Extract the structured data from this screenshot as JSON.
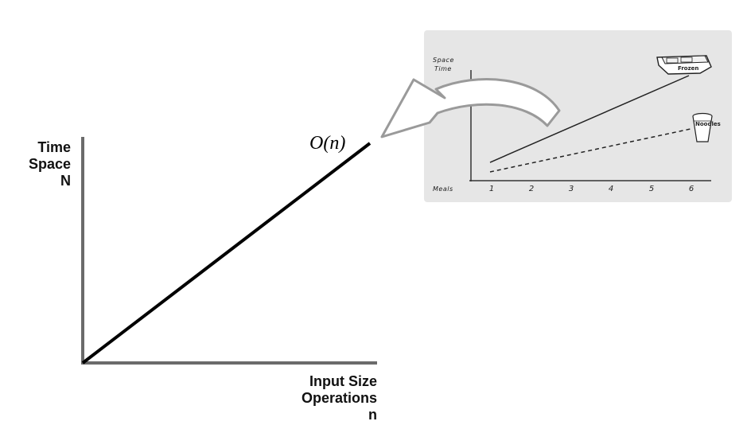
{
  "main_chart": {
    "y_label_lines": [
      "Time",
      "Space",
      "N"
    ],
    "x_label_lines": [
      "Input Size",
      "Operations",
      "n"
    ],
    "curve_label": "O(n)"
  },
  "sketch_chart": {
    "y_label_lines": [
      "Space",
      "Time"
    ],
    "x_label": "Meals",
    "ticks": [
      "1",
      "2",
      "3",
      "4",
      "5",
      "6"
    ],
    "frozen_label": "Frozen",
    "noodles_label": "Noodles",
    "panel_color": "#e6e6e6"
  },
  "icons": {
    "arrow": "curved-arrow-icon",
    "frozen": "frozen-meal-tray-icon",
    "noodles": "noodle-cup-icon"
  }
}
